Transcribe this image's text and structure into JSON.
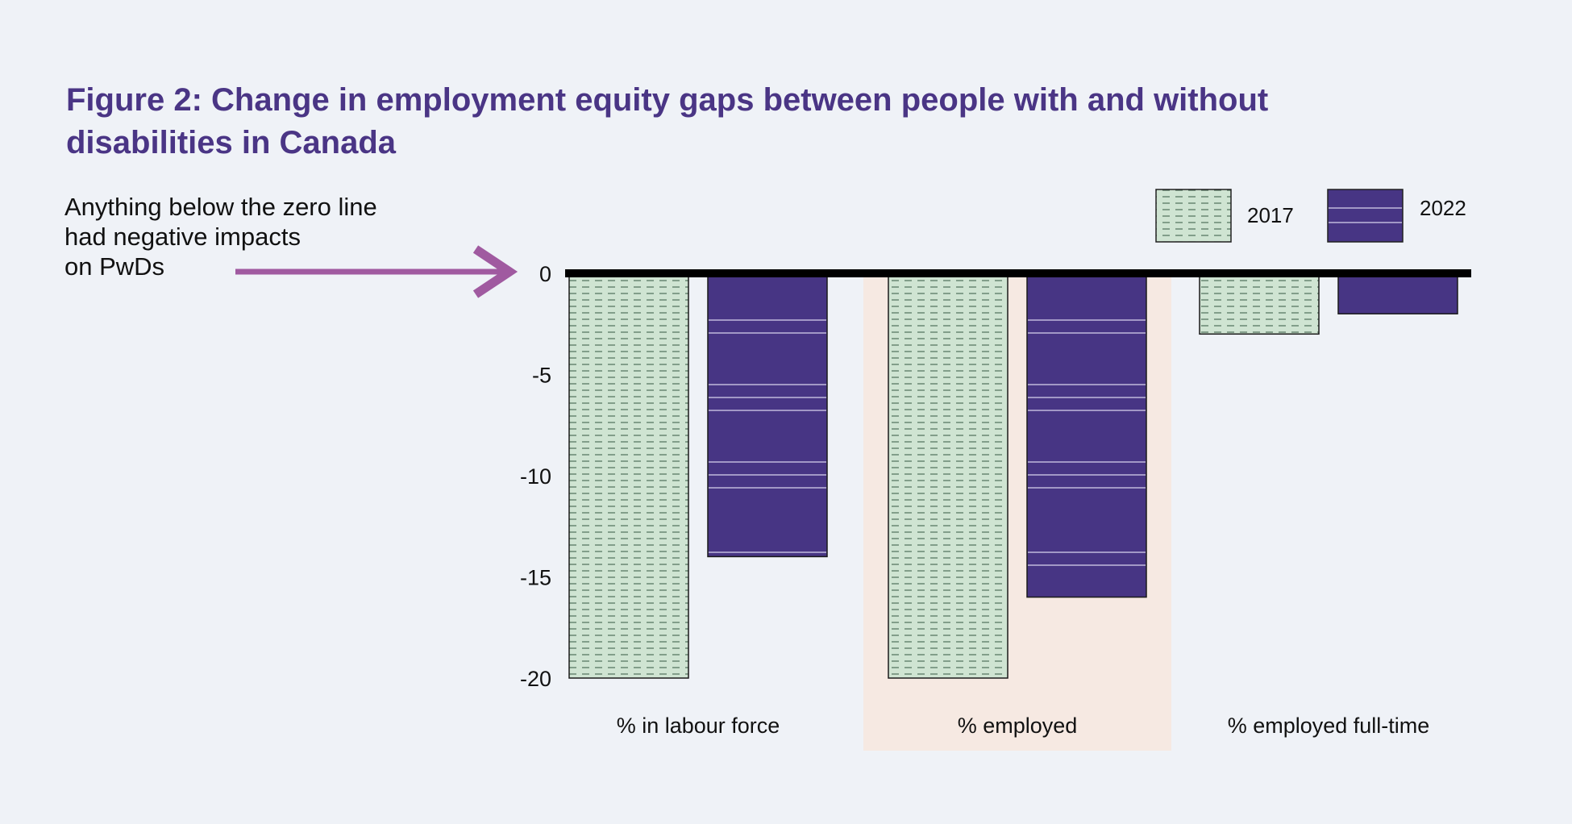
{
  "title": "Figure 2: Change in employment equity gaps between people with and without disabilities in Canada",
  "annotation": {
    "lines": [
      "Anything below the zero line",
      "had negative impacts",
      "on PwDs"
    ]
  },
  "colors": {
    "title": "#4a3585",
    "series_2017_fill": "#cfe4d2",
    "series_2017_dash": "#4f6e5a",
    "series_2022_fill": "#473584",
    "series_2022_line": "#d9d4ee",
    "highlight_band": "#f6e9e2",
    "arrow": "#a05aa0",
    "baseline": "#000000"
  },
  "chart_data": {
    "type": "bar",
    "title": "Figure 2: Change in employment equity gaps between people with and without disabilities in Canada",
    "categories": [
      "% in labour force",
      "% employed",
      "% employed full-time"
    ],
    "series": [
      {
        "name": "2017",
        "values": [
          -20,
          -20,
          -3
        ]
      },
      {
        "name": "2022",
        "values": [
          -14,
          -16,
          -2
        ]
      }
    ],
    "ylim": [
      -20,
      0
    ],
    "yticks": [
      "0",
      "-5",
      "-10",
      "-15",
      "-20"
    ],
    "ytick_values": [
      0,
      -5,
      -10,
      -15,
      -20
    ],
    "highlighted_category": "% employed",
    "legend_position": "top-right",
    "xlabel": "",
    "ylabel": ""
  }
}
